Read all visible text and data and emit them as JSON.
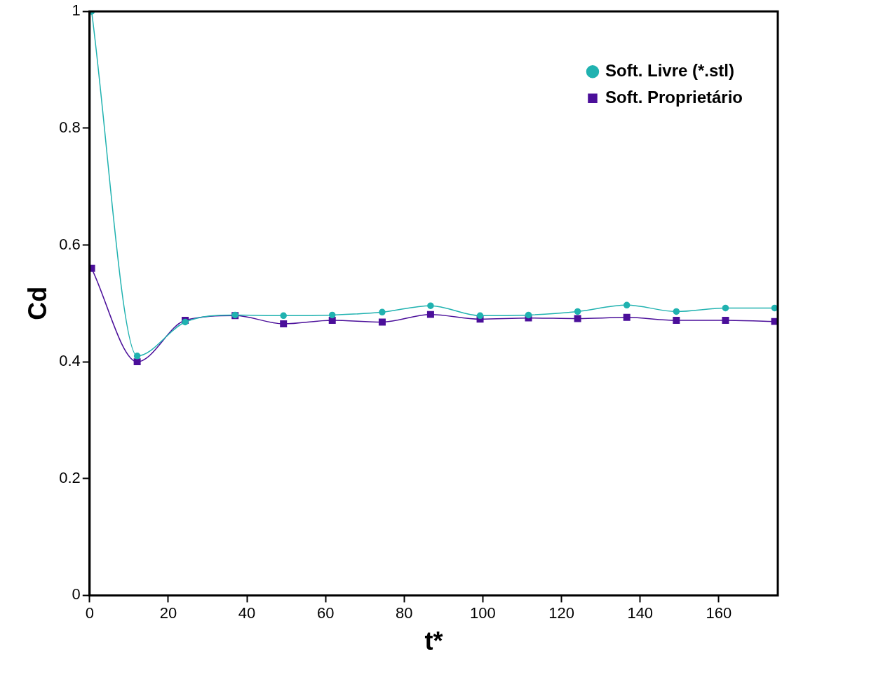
{
  "chart_data": {
    "type": "line",
    "xlabel": "t*",
    "ylabel": "Cd",
    "xlim": [
      0,
      175
    ],
    "xticks": [
      0,
      20,
      40,
      60,
      80,
      100,
      120,
      140,
      160
    ],
    "ylim": [
      0,
      1
    ],
    "yticks": [
      0,
      0.2,
      0.4,
      0.6,
      0.8,
      1
    ],
    "grid": false,
    "legend": "top right",
    "line_style": "solid",
    "series": [
      {
        "name": "Soft. Proprietário",
        "color": "#4b0f9a",
        "marker": "square",
        "x": [
          0.5,
          12.1,
          24.3,
          37,
          49.3,
          61.7,
          74.4,
          86.7,
          99.3,
          111.6,
          124.1,
          136.6,
          149.2,
          161.7,
          174.2
        ],
        "values": [
          0.56,
          0.4,
          0.471,
          0.479,
          0.465,
          0.471,
          0.468,
          0.481,
          0.473,
          0.475,
          0.474,
          0.476,
          0.471,
          0.471,
          0.469
        ]
      },
      {
        "name": "Soft. Livre (*.stl)",
        "color": "#20b2b0",
        "marker": "circle",
        "x": [
          0.5,
          12.1,
          24.3,
          37,
          49.3,
          61.7,
          74.4,
          86.7,
          99.3,
          111.6,
          124.1,
          136.6,
          149.2,
          161.7,
          174.2
        ],
        "values": [
          1.0,
          0.41,
          0.468,
          0.48,
          0.479,
          0.48,
          0.485,
          0.496,
          0.479,
          0.48,
          0.486,
          0.497,
          0.486,
          0.492,
          0.492
        ]
      }
    ]
  }
}
